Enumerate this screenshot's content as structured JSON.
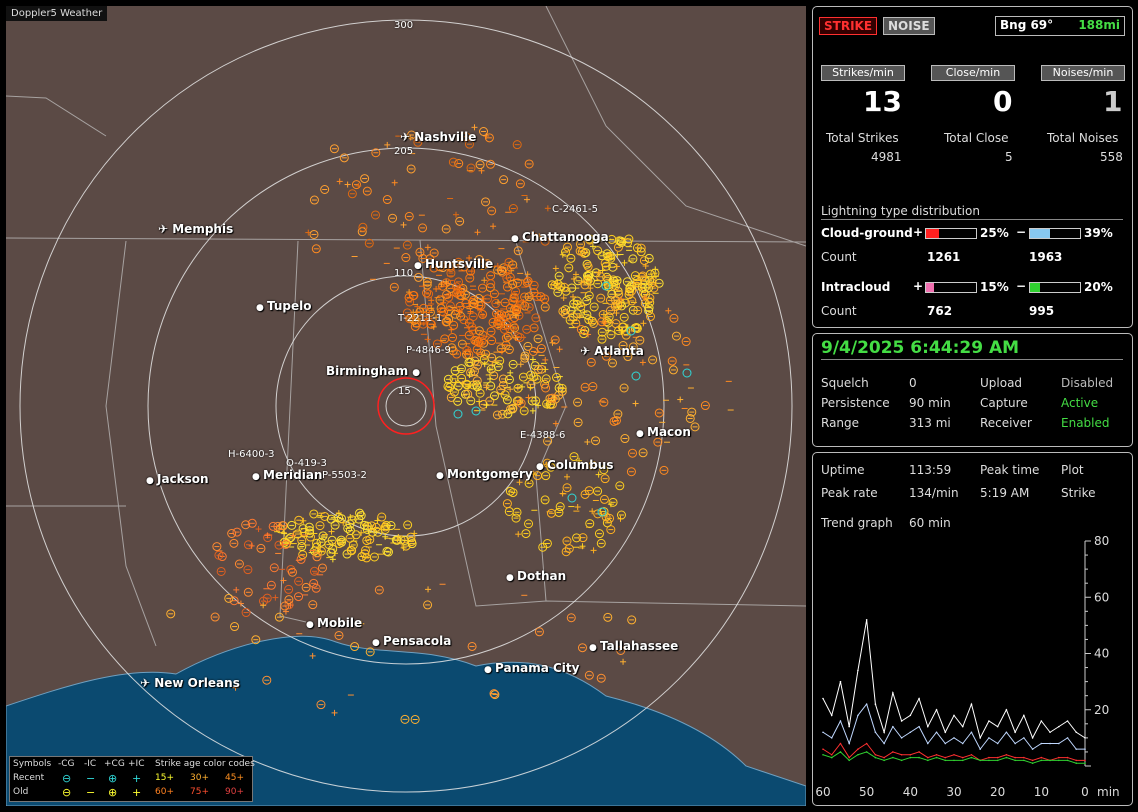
{
  "app": {
    "brand": "Doppler5 Weather"
  },
  "colors": {
    "map_bg": "#5b4a45",
    "water": "#0b4a70",
    "cg_bar": "#ff2020",
    "cg_neg_bar": "#88c8f0",
    "ic_bar": "#f070b0",
    "ic_neg_bar": "#30d030",
    "accent_green": "#44dd44",
    "strike_red": "#ff3030"
  },
  "map": {
    "range_rings": [
      "300",
      "205",
      "110",
      "15"
    ],
    "cities": [
      {
        "name": "Nashville",
        "airport": true
      },
      {
        "name": "Memphis",
        "airport": true
      },
      {
        "name": "Chattanooga",
        "airport": false
      },
      {
        "name": "Huntsville",
        "airport": false
      },
      {
        "name": "Tupelo",
        "airport": false
      },
      {
        "name": "Atlanta",
        "airport": true
      },
      {
        "name": "Birmingham",
        "airport": false
      },
      {
        "name": "Macon",
        "airport": false
      },
      {
        "name": "Jackson",
        "airport": false
      },
      {
        "name": "Meridian",
        "airport": false
      },
      {
        "name": "Montgomery",
        "airport": false
      },
      {
        "name": "Columbus",
        "airport": false
      },
      {
        "name": "Dothan",
        "airport": false
      },
      {
        "name": "Mobile",
        "airport": false
      },
      {
        "name": "Pensacola",
        "airport": false
      },
      {
        "name": "Tallahassee",
        "airport": false
      },
      {
        "name": "Panama City",
        "airport": false
      },
      {
        "name": "New Orleans",
        "airport": true
      }
    ],
    "storm_labels": [
      "C-2461-5",
      "T-2211-1",
      "P-4846-9",
      "E-4388-6",
      "H-6400-3",
      "O-419-3",
      "P-5503-2"
    ]
  },
  "legend": {
    "symbols_label": "Symbols",
    "cols": [
      "-CG",
      "-IC",
      "+CG",
      "+IC"
    ],
    "recent_label": "Recent",
    "old_label": "Old",
    "age_title": "Strike age color codes",
    "recent_ages": [
      "15+",
      "30+",
      "45+"
    ],
    "old_ages": [
      "60+",
      "75+",
      "90+"
    ]
  },
  "panel1": {
    "tab_strike": "STRIKE",
    "tab_noise": "NOISE",
    "bearing": "Bng 69°",
    "distance": "188mi",
    "strikes_min_label": "Strikes/min",
    "close_min_label": "Close/min",
    "noises_min_label": "Noises/min",
    "strikes_min": "13",
    "close_min": "0",
    "noises_min": "1",
    "total_strikes_label": "Total Strikes",
    "total_close_label": "Total Close",
    "total_noises_label": "Total Noises",
    "total_strikes": "4981",
    "total_close": "5",
    "total_noises": "558",
    "dist_title": "Lightning type distribution",
    "cloud_ground_label": "Cloud-ground",
    "intracloud_label": "Intracloud",
    "plus": "+",
    "minus": "−",
    "count_label": "Count",
    "cg_pos_pct": "25%",
    "cg_neg_pct": "39%",
    "cg_pos_count": "1261",
    "cg_neg_count": "1963",
    "ic_pos_pct": "15%",
    "ic_neg_pct": "20%",
    "ic_pos_count": "762",
    "ic_neg_count": "995",
    "cg_pos_frac": 0.25,
    "cg_neg_frac": 0.39,
    "ic_pos_frac": 0.15,
    "ic_neg_frac": 0.2
  },
  "panel2": {
    "datetime": "9/4/2025 6:44:29 AM",
    "squelch_label": "Squelch",
    "squelch": "0",
    "upload_label": "Upload",
    "upload": "Disabled",
    "persistence_label": "Persistence",
    "persistence": "90 min",
    "capture_label": "Capture",
    "capture": "Active",
    "range_label": "Range",
    "range": "313 mi",
    "receiver_label": "Receiver",
    "receiver": "Enabled"
  },
  "panel3": {
    "uptime_label": "Uptime",
    "uptime": "113:59",
    "peak_time_label": "Peak time",
    "peak_time": "5:19 AM",
    "plot_label": "Plot",
    "plot": "Strike",
    "peak_rate_label": "Peak rate",
    "peak_rate": "134/min",
    "trend_label": "Trend graph",
    "trend": "60 min",
    "y_ticks": [
      "80",
      "60",
      "40",
      "20"
    ],
    "x_ticks": [
      "60",
      "50",
      "40",
      "30",
      "20",
      "10",
      "0"
    ],
    "x_unit": "min"
  },
  "chart_data": {
    "type": "line",
    "x": [
      60,
      58,
      56,
      54,
      52,
      50,
      48,
      46,
      44,
      42,
      40,
      38,
      36,
      34,
      32,
      30,
      28,
      26,
      24,
      22,
      20,
      18,
      16,
      14,
      12,
      10,
      8,
      6,
      4,
      2,
      0
    ],
    "xlabel": "min",
    "ylim": [
      0,
      80
    ],
    "series": [
      {
        "values": [
          24,
          18,
          30,
          14,
          34,
          52,
          22,
          12,
          26,
          16,
          18,
          24,
          14,
          20,
          12,
          18,
          14,
          22,
          10,
          16,
          14,
          20,
          12,
          18,
          10,
          16,
          12,
          14,
          16,
          12,
          10
        ]
      },
      {
        "values": [
          12,
          10,
          16,
          8,
          18,
          22,
          12,
          8,
          14,
          10,
          12,
          14,
          8,
          12,
          8,
          10,
          8,
          12,
          6,
          10,
          8,
          12,
          8,
          10,
          6,
          8,
          8,
          8,
          10,
          6,
          6
        ]
      },
      {
        "values": [
          6,
          4,
          8,
          3,
          6,
          8,
          4,
          3,
          5,
          4,
          4,
          5,
          3,
          4,
          3,
          4,
          3,
          4,
          2,
          3,
          3,
          4,
          3,
          3,
          2,
          3,
          2,
          3,
          3,
          2,
          2
        ]
      },
      {
        "values": [
          4,
          3,
          5,
          2,
          4,
          5,
          3,
          2,
          3,
          2,
          3,
          3,
          2,
          3,
          2,
          2,
          2,
          3,
          2,
          2,
          2,
          3,
          2,
          2,
          1,
          2,
          2,
          2,
          2,
          1,
          1
        ]
      }
    ]
  }
}
